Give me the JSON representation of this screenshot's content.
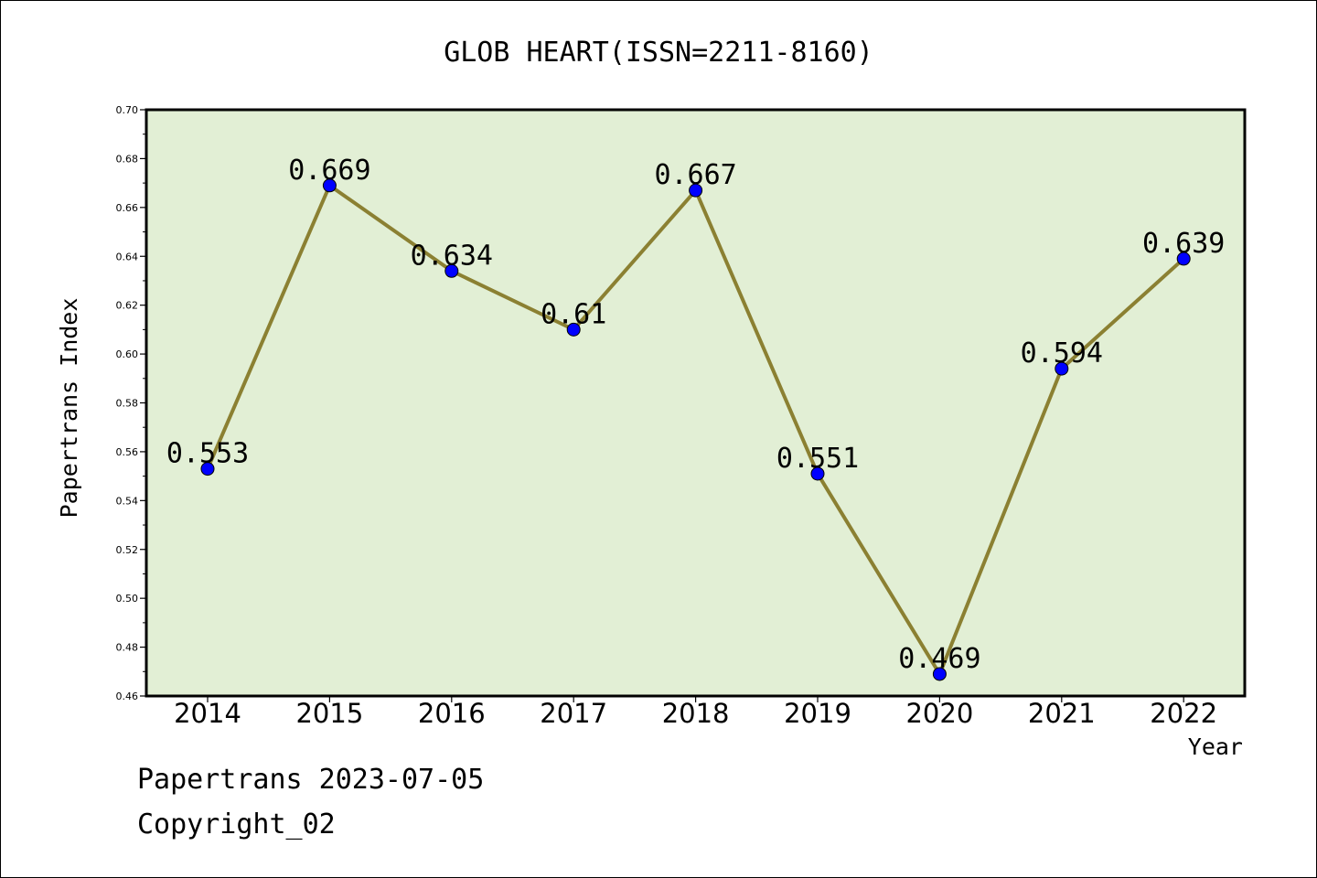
{
  "chart_data": {
    "type": "line",
    "title": "GLOB HEART(ISSN=2211-8160)",
    "xlabel": "Year",
    "ylabel": "Papertrans Index",
    "categories": [
      "2014",
      "2015",
      "2016",
      "2017",
      "2018",
      "2019",
      "2020",
      "2021",
      "2022"
    ],
    "series": [
      {
        "values": [
          0.553,
          0.669,
          0.634,
          0.61,
          0.667,
          0.551,
          0.469,
          0.594,
          0.639
        ],
        "data_labels": [
          "0.553",
          "0.669",
          "0.634",
          "0.61",
          "0.667",
          "0.551",
          "0.469",
          "0.594",
          "0.639"
        ]
      }
    ],
    "ylim": [
      0.46,
      0.7
    ],
    "yticks": [
      "0.46",
      "0.48",
      "0.50",
      "0.52",
      "0.54",
      "0.56",
      "0.58",
      "0.60",
      "0.62",
      "0.64",
      "0.66",
      "0.68",
      "0.70"
    ],
    "grid": false,
    "legend": "none",
    "colors": {
      "plot_background": "#e2efd5",
      "line": "#8b8032",
      "marker": "#0000ff"
    }
  },
  "footer": {
    "date_text": "Papertrans 2023-07-05",
    "copyright_text": "Copyright_02"
  }
}
